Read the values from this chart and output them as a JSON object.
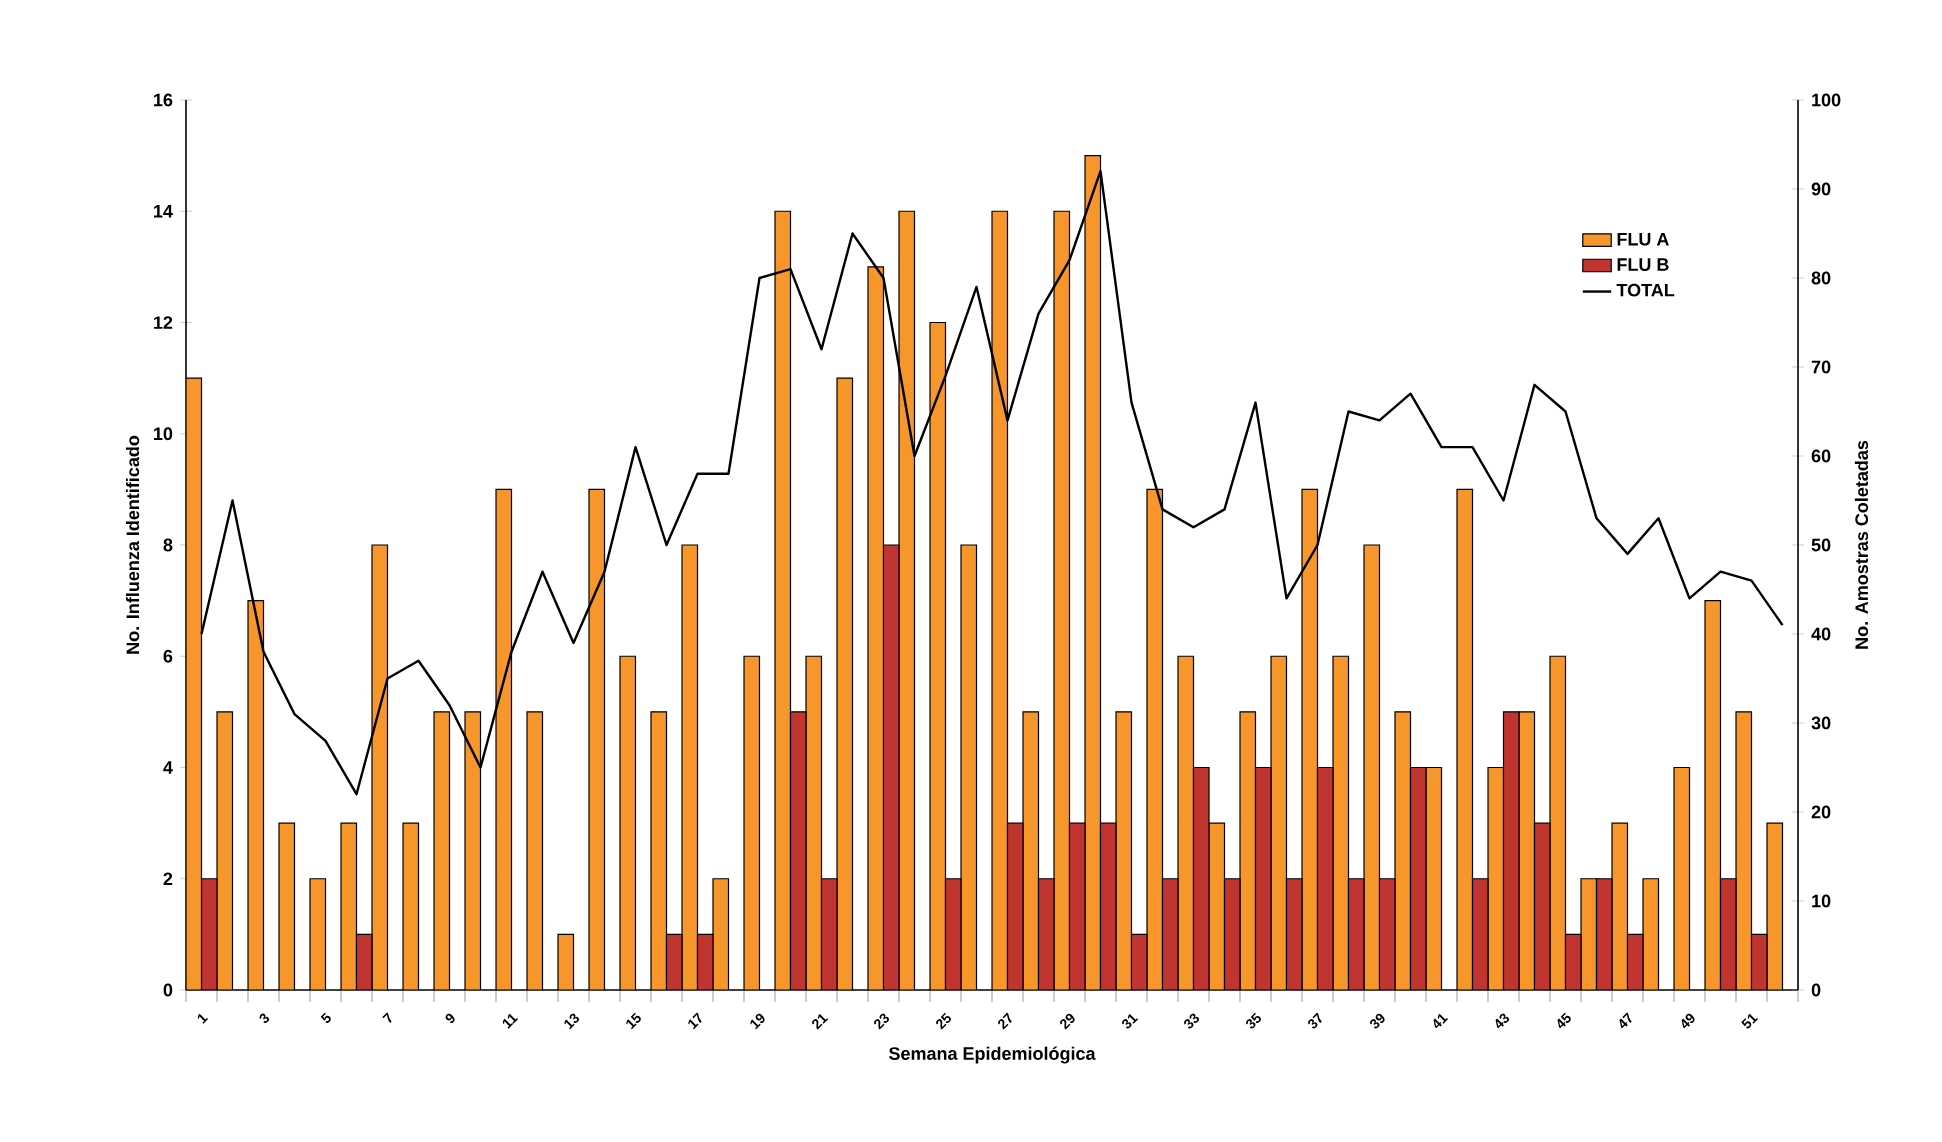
{
  "chart_data": {
    "type": "bar",
    "xlabel": "Semana Epidemiológica",
    "ylabel": "No. Influenza Identificado",
    "y2label": "No. Amostras Coletadas",
    "categories": [
      "1",
      null,
      "3",
      null,
      "5",
      null,
      "7",
      null,
      "9",
      null,
      "11",
      null,
      "13",
      null,
      "15",
      null,
      "17",
      null,
      "19",
      null,
      "21",
      null,
      "23",
      null,
      "25",
      null,
      "27",
      null,
      "29",
      null,
      "31",
      null,
      "33",
      null,
      "35",
      null,
      "37",
      null,
      "39",
      null,
      "41",
      null,
      "43",
      null,
      "45",
      null,
      "47",
      null,
      "49",
      null,
      "51",
      null
    ],
    "series": [
      {
        "name": "FLU A",
        "type": "bar",
        "color": "#f7962a",
        "values": [
          11,
          5,
          7,
          3,
          2,
          3,
          8,
          3,
          5,
          5,
          9,
          5,
          1,
          9,
          6,
          5,
          8,
          2,
          6,
          14,
          6,
          11,
          13,
          14,
          12,
          8,
          14,
          5,
          14,
          15,
          5,
          9,
          6,
          3,
          5,
          6,
          9,
          6,
          8,
          5,
          4,
          9,
          4,
          5,
          6,
          2,
          3,
          2,
          4,
          7,
          5,
          3
        ]
      },
      {
        "name": "FLU B",
        "type": "bar",
        "color": "#c03530",
        "values": [
          2,
          0,
          0,
          0,
          0,
          1,
          0,
          0,
          0,
          0,
          0,
          0,
          0,
          0,
          0,
          1,
          1,
          0,
          0,
          5,
          2,
          0,
          8,
          0,
          2,
          0,
          3,
          2,
          3,
          3,
          1,
          2,
          4,
          2,
          4,
          2,
          4,
          2,
          2,
          4,
          0,
          2,
          5,
          3,
          1,
          2,
          1,
          0,
          0,
          2,
          1,
          0
        ]
      },
      {
        "name": "TOTAL",
        "type": "line",
        "axis": "y2",
        "color": "#000000",
        "values": [
          40,
          55,
          38,
          31,
          28,
          22,
          35,
          37,
          32,
          25,
          38,
          47,
          39,
          47,
          61,
          50,
          58,
          58,
          80,
          81,
          72,
          85,
          80,
          60,
          69,
          79,
          64,
          76,
          82,
          92,
          66,
          54,
          52,
          54,
          66,
          44,
          50,
          65,
          64,
          67,
          61,
          61,
          55,
          68,
          65,
          53,
          49,
          53,
          44,
          47,
          46,
          41
        ]
      }
    ],
    "ylim": [
      0,
      16
    ],
    "yticks": [
      0,
      2,
      4,
      6,
      8,
      10,
      12,
      14,
      16
    ],
    "y2lim": [
      0,
      100
    ],
    "y2ticks": [
      0,
      10,
      20,
      30,
      40,
      50,
      60,
      70,
      80,
      90,
      100
    ],
    "legend": "top right",
    "marker": "none"
  }
}
